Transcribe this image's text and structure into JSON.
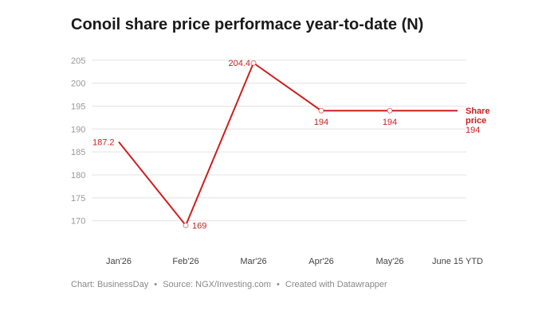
{
  "chart_data": {
    "type": "line",
    "title": "Conoil share price performace year-to-date (N)",
    "categories": [
      "Jan'26",
      "Feb'26",
      "Mar'26",
      "Apr'26",
      "May'26",
      "June 15 YTD"
    ],
    "series": [
      {
        "name": "Share price",
        "values": [
          187.2,
          169,
          204.4,
          194,
          194,
          194
        ],
        "color": "#cc1f1f"
      }
    ],
    "data_labels": [
      "187.2",
      "169",
      "204.4",
      "194",
      "194",
      ""
    ],
    "end_label": {
      "line1": "Share",
      "line2": "price",
      "value": "194"
    },
    "ylim": [
      167,
      206
    ],
    "yticks": [
      170,
      175,
      180,
      185,
      190,
      195,
      200,
      205
    ],
    "grid": true,
    "xlabel": "",
    "ylabel": ""
  },
  "footer": {
    "chart_credit": "Chart: BusinessDay",
    "source": "Source: NGX/Investing.com",
    "created_with": "Created with Datawrapper",
    "separator": "•"
  },
  "colors": {
    "series": "#cc1f1f",
    "grid": "#e3e3e3"
  }
}
